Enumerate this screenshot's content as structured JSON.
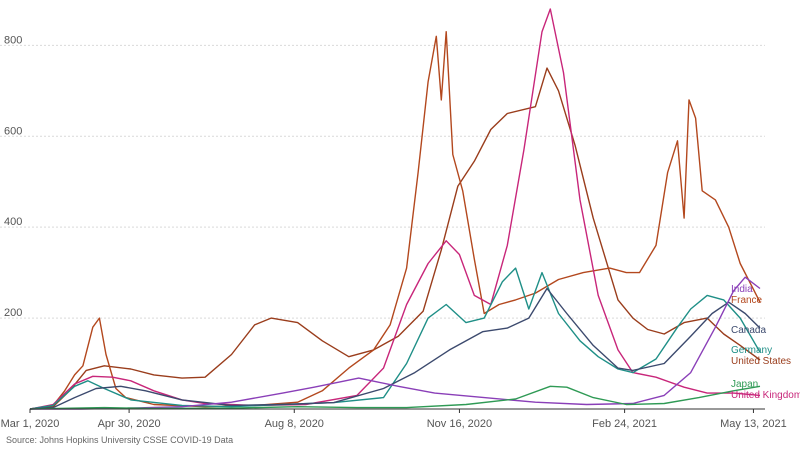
{
  "source_note": "Source: Johns Hopkins University CSSE COVID-19 Data",
  "colors": {
    "India": "#8a3fb8",
    "France": "#b3481e",
    "Canada": "#3c4a6e",
    "Germany": "#1f8f87",
    "United States": "#9a3d1c",
    "Japan": "#2f9a55",
    "United Kingdom": "#c8267a"
  },
  "chart_data": {
    "type": "line",
    "title": "",
    "xlabel": "",
    "ylabel": "",
    "ylim": [
      0,
      880
    ],
    "xlim": [
      "2020-03-01",
      "2021-05-20"
    ],
    "grid": "horizontal",
    "legend": "direct labels at right end of lines",
    "y_ticks": [
      200,
      400,
      600,
      800
    ],
    "x_ticks": [
      {
        "date": "2020-03-01",
        "label": "Mar 1, 2020"
      },
      {
        "date": "2020-04-30",
        "label": "Apr 30, 2020"
      },
      {
        "date": "2020-08-08",
        "label": "Aug 8, 2020"
      },
      {
        "date": "2020-11-16",
        "label": "Nov 16, 2020"
      },
      {
        "date": "2021-02-24",
        "label": "Feb 24, 2021"
      },
      {
        "date": "2021-05-13",
        "label": "May 13, 2021"
      }
    ],
    "series": [
      {
        "name": "United States",
        "points": [
          [
            "2020-03-01",
            0
          ],
          [
            "2020-03-15",
            5
          ],
          [
            "2020-03-25",
            40
          ],
          [
            "2020-04-04",
            85
          ],
          [
            "2020-04-15",
            95
          ],
          [
            "2020-05-01",
            88
          ],
          [
            "2020-05-15",
            75
          ],
          [
            "2020-06-01",
            68
          ],
          [
            "2020-06-15",
            70
          ],
          [
            "2020-07-01",
            120
          ],
          [
            "2020-07-15",
            185
          ],
          [
            "2020-07-25",
            200
          ],
          [
            "2020-08-10",
            190
          ],
          [
            "2020-08-25",
            150
          ],
          [
            "2020-09-10",
            115
          ],
          [
            "2020-09-25",
            130
          ],
          [
            "2020-10-10",
            160
          ],
          [
            "2020-10-25",
            215
          ],
          [
            "2020-11-05",
            350
          ],
          [
            "2020-11-15",
            490
          ],
          [
            "2020-11-25",
            545
          ],
          [
            "2020-12-05",
            615
          ],
          [
            "2020-12-15",
            650
          ],
          [
            "2021-01-01",
            665
          ],
          [
            "2021-01-08",
            750
          ],
          [
            "2021-01-15",
            700
          ],
          [
            "2021-01-25",
            580
          ],
          [
            "2021-02-05",
            420
          ],
          [
            "2021-02-20",
            240
          ],
          [
            "2021-03-01",
            200
          ],
          [
            "2021-03-10",
            175
          ],
          [
            "2021-03-20",
            165
          ],
          [
            "2021-04-01",
            190
          ],
          [
            "2021-04-15",
            200
          ],
          [
            "2021-04-25",
            165
          ],
          [
            "2021-05-05",
            140
          ],
          [
            "2021-05-17",
            108
          ]
        ]
      },
      {
        "name": "France",
        "points": [
          [
            "2020-03-01",
            0
          ],
          [
            "2020-03-15",
            8
          ],
          [
            "2020-03-22",
            40
          ],
          [
            "2020-03-28",
            75
          ],
          [
            "2020-04-02",
            95
          ],
          [
            "2020-04-08",
            180
          ],
          [
            "2020-04-12",
            200
          ],
          [
            "2020-04-16",
            120
          ],
          [
            "2020-04-22",
            45
          ],
          [
            "2020-04-28",
            25
          ],
          [
            "2020-05-15",
            10
          ],
          [
            "2020-06-15",
            5
          ],
          [
            "2020-07-15",
            8
          ],
          [
            "2020-08-10",
            15
          ],
          [
            "2020-08-25",
            40
          ],
          [
            "2020-09-10",
            90
          ],
          [
            "2020-09-25",
            130
          ],
          [
            "2020-10-05",
            185
          ],
          [
            "2020-10-15",
            310
          ],
          [
            "2020-10-22",
            520
          ],
          [
            "2020-10-28",
            720
          ],
          [
            "2020-11-02",
            820
          ],
          [
            "2020-11-05",
            680
          ],
          [
            "2020-11-08",
            830
          ],
          [
            "2020-11-12",
            560
          ],
          [
            "2020-11-18",
            480
          ],
          [
            "2020-11-25",
            330
          ],
          [
            "2020-12-01",
            210
          ],
          [
            "2020-12-10",
            230
          ],
          [
            "2020-12-20",
            240
          ],
          [
            "2021-01-01",
            255
          ],
          [
            "2021-01-15",
            285
          ],
          [
            "2021-01-30",
            300
          ],
          [
            "2021-02-15",
            310
          ],
          [
            "2021-02-25",
            300
          ],
          [
            "2021-03-05",
            300
          ],
          [
            "2021-03-15",
            360
          ],
          [
            "2021-03-22",
            520
          ],
          [
            "2021-03-28",
            590
          ],
          [
            "2021-04-01",
            420
          ],
          [
            "2021-04-04",
            680
          ],
          [
            "2021-04-08",
            640
          ],
          [
            "2021-04-12",
            480
          ],
          [
            "2021-04-20",
            460
          ],
          [
            "2021-04-28",
            400
          ],
          [
            "2021-05-05",
            320
          ],
          [
            "2021-05-17",
            235
          ]
        ]
      },
      {
        "name": "United Kingdom",
        "points": [
          [
            "2020-03-01",
            0
          ],
          [
            "2020-03-15",
            10
          ],
          [
            "2020-03-28",
            55
          ],
          [
            "2020-04-08",
            72
          ],
          [
            "2020-04-20",
            70
          ],
          [
            "2020-05-01",
            62
          ],
          [
            "2020-05-15",
            40
          ],
          [
            "2020-06-01",
            20
          ],
          [
            "2020-06-15",
            12
          ],
          [
            "2020-07-15",
            8
          ],
          [
            "2020-08-15",
            10
          ],
          [
            "2020-09-15",
            30
          ],
          [
            "2020-10-01",
            90
          ],
          [
            "2020-10-15",
            230
          ],
          [
            "2020-10-28",
            320
          ],
          [
            "2020-11-08",
            370
          ],
          [
            "2020-11-16",
            340
          ],
          [
            "2020-11-25",
            250
          ],
          [
            "2020-12-05",
            230
          ],
          [
            "2020-12-15",
            360
          ],
          [
            "2020-12-25",
            570
          ],
          [
            "2021-01-05",
            830
          ],
          [
            "2021-01-10",
            880
          ],
          [
            "2021-01-18",
            740
          ],
          [
            "2021-01-28",
            460
          ],
          [
            "2021-02-08",
            250
          ],
          [
            "2021-02-20",
            130
          ],
          [
            "2021-03-01",
            80
          ],
          [
            "2021-03-15",
            70
          ],
          [
            "2021-04-01",
            48
          ],
          [
            "2021-04-15",
            35
          ],
          [
            "2021-05-01",
            35
          ],
          [
            "2021-05-17",
            30
          ]
        ]
      },
      {
        "name": "Germany",
        "points": [
          [
            "2020-03-01",
            0
          ],
          [
            "2020-03-15",
            8
          ],
          [
            "2020-03-28",
            50
          ],
          [
            "2020-04-05",
            62
          ],
          [
            "2020-04-15",
            45
          ],
          [
            "2020-05-01",
            20
          ],
          [
            "2020-06-01",
            8
          ],
          [
            "2020-07-01",
            5
          ],
          [
            "2020-08-01",
            10
          ],
          [
            "2020-09-01",
            14
          ],
          [
            "2020-10-01",
            25
          ],
          [
            "2020-10-15",
            100
          ],
          [
            "2020-10-28",
            200
          ],
          [
            "2020-11-08",
            230
          ],
          [
            "2020-11-20",
            190
          ],
          [
            "2020-12-01",
            200
          ],
          [
            "2020-12-12",
            280
          ],
          [
            "2020-12-20",
            310
          ],
          [
            "2020-12-28",
            220
          ],
          [
            "2021-01-05",
            300
          ],
          [
            "2021-01-15",
            210
          ],
          [
            "2021-01-28",
            150
          ],
          [
            "2021-02-08",
            115
          ],
          [
            "2021-02-20",
            88
          ],
          [
            "2021-03-01",
            80
          ],
          [
            "2021-03-15",
            110
          ],
          [
            "2021-03-28",
            180
          ],
          [
            "2021-04-05",
            220
          ],
          [
            "2021-04-15",
            250
          ],
          [
            "2021-04-25",
            240
          ],
          [
            "2021-05-05",
            200
          ],
          [
            "2021-05-17",
            125
          ]
        ]
      },
      {
        "name": "Canada",
        "points": [
          [
            "2020-03-01",
            0
          ],
          [
            "2020-03-15",
            3
          ],
          [
            "2020-03-28",
            25
          ],
          [
            "2020-04-10",
            45
          ],
          [
            "2020-04-25",
            50
          ],
          [
            "2020-05-10",
            40
          ],
          [
            "2020-06-01",
            20
          ],
          [
            "2020-07-01",
            8
          ],
          [
            "2020-08-01",
            10
          ],
          [
            "2020-09-01",
            14
          ],
          [
            "2020-10-01",
            45
          ],
          [
            "2020-10-20",
            80
          ],
          [
            "2020-11-10",
            130
          ],
          [
            "2020-11-30",
            170
          ],
          [
            "2020-12-15",
            178
          ],
          [
            "2020-12-28",
            200
          ],
          [
            "2021-01-08",
            265
          ],
          [
            "2021-01-20",
            210
          ],
          [
            "2021-02-05",
            140
          ],
          [
            "2021-02-20",
            90
          ],
          [
            "2021-03-01",
            85
          ],
          [
            "2021-03-20",
            100
          ],
          [
            "2021-04-05",
            160
          ],
          [
            "2021-04-18",
            210
          ],
          [
            "2021-04-28",
            235
          ],
          [
            "2021-05-08",
            210
          ],
          [
            "2021-05-17",
            178
          ]
        ]
      },
      {
        "name": "India",
        "points": [
          [
            "2020-03-01",
            0
          ],
          [
            "2020-04-01",
            0
          ],
          [
            "2020-05-01",
            2
          ],
          [
            "2020-06-01",
            5
          ],
          [
            "2020-07-01",
            15
          ],
          [
            "2020-08-01",
            35
          ],
          [
            "2020-08-20",
            48
          ],
          [
            "2020-09-16",
            68
          ],
          [
            "2020-10-10",
            50
          ],
          [
            "2020-11-01",
            35
          ],
          [
            "2020-12-01",
            25
          ],
          [
            "2021-01-01",
            15
          ],
          [
            "2021-02-01",
            10
          ],
          [
            "2021-03-01",
            12
          ],
          [
            "2021-03-20",
            30
          ],
          [
            "2021-04-05",
            80
          ],
          [
            "2021-04-20",
            180
          ],
          [
            "2021-05-01",
            260
          ],
          [
            "2021-05-08",
            290
          ],
          [
            "2021-05-17",
            265
          ]
        ]
      },
      {
        "name": "Japan",
        "points": [
          [
            "2020-03-01",
            0
          ],
          [
            "2020-04-15",
            3
          ],
          [
            "2020-05-15",
            1
          ],
          [
            "2020-07-01",
            2
          ],
          [
            "2020-08-10",
            5
          ],
          [
            "2020-09-15",
            3
          ],
          [
            "2020-10-15",
            3
          ],
          [
            "2020-11-20",
            10
          ],
          [
            "2020-12-20",
            22
          ],
          [
            "2021-01-10",
            50
          ],
          [
            "2021-01-20",
            48
          ],
          [
            "2021-02-05",
            25
          ],
          [
            "2021-02-25",
            10
          ],
          [
            "2021-03-20",
            12
          ],
          [
            "2021-04-10",
            25
          ],
          [
            "2021-05-01",
            40
          ],
          [
            "2021-05-17",
            50
          ]
        ]
      }
    ],
    "end_labels": [
      {
        "name": "India",
        "text": "India"
      },
      {
        "name": "France",
        "text": "France"
      },
      {
        "name": "Canada",
        "text": "Canada"
      },
      {
        "name": "Germany",
        "text": "Germany"
      },
      {
        "name": "United States",
        "text": "United States"
      },
      {
        "name": "Japan",
        "text": "Japan"
      },
      {
        "name": "United Kingdom",
        "text": "United Kingdom"
      }
    ]
  }
}
